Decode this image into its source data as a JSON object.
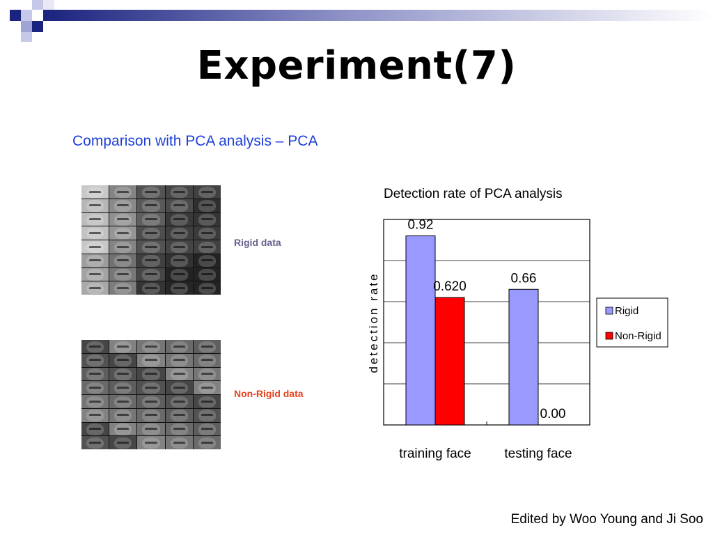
{
  "title": "Experiment(7)",
  "subtitle": "Comparison with PCA analysis – PCA",
  "images": {
    "rigid_label": "Rigid data",
    "nonrigid_label": "Non-Rigid data"
  },
  "footer": "Edited by Woo Young and Ji Soo",
  "colors": {
    "title_color": "#000000",
    "subtitle_color": "#1c3fd8",
    "rigid_bar": "#9999ff",
    "nonrigid_bar": "#ff0000",
    "header_square": "#1a237e"
  },
  "chart_data": {
    "type": "bar",
    "title": "Detection rate of PCA analysis",
    "xlabel": "",
    "ylabel": "detection rate",
    "categories": [
      "training face",
      "testing face"
    ],
    "series": [
      {
        "name": "Rigid",
        "values": [
          0.92,
          0.66
        ],
        "labels": [
          "0.92",
          "0.66"
        ]
      },
      {
        "name": "Non-Rigid",
        "values": [
          0.62,
          0.0
        ],
        "labels": [
          "0.620",
          "0.00"
        ]
      }
    ],
    "ylim": [
      0,
      1
    ],
    "grid": true,
    "legend": "right"
  }
}
